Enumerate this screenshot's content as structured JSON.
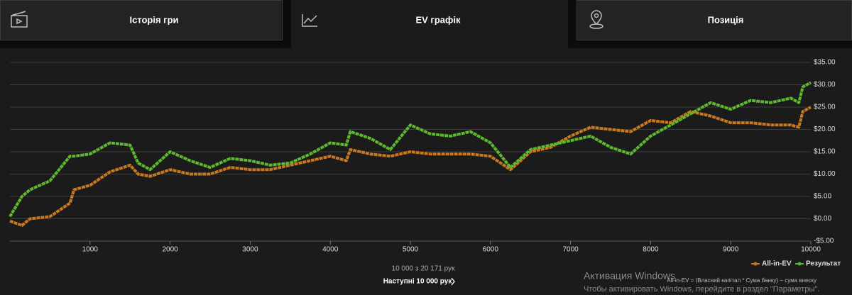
{
  "tabs": [
    {
      "label": "Історія гри"
    },
    {
      "label": "EV графік"
    },
    {
      "label": "Позиція"
    }
  ],
  "pagination": {
    "summary": "10 000 з 20 171 рук",
    "next": "Наступні 10 000 рук"
  },
  "footnote": "All-in-EV = (Власний капітал * Сума банку) − сума внеску",
  "watermark": {
    "title": "Активация Windows",
    "text": "Чтобы активировать Windows, перейдите в раздел \"Параметры\"."
  },
  "chart_data": {
    "type": "line",
    "x": [
      0,
      150,
      250,
      500,
      750,
      800,
      1000,
      1250,
      1500,
      1600,
      1750,
      2000,
      2250,
      2500,
      2750,
      3000,
      3250,
      3500,
      3750,
      4000,
      4200,
      4250,
      4500,
      4750,
      5000,
      5250,
      5500,
      5750,
      6000,
      6250,
      6500,
      6750,
      7000,
      7250,
      7500,
      7750,
      8000,
      8250,
      8500,
      8750,
      9000,
      9250,
      9500,
      9750,
      9850,
      9900,
      10000
    ],
    "series": [
      {
        "name": "All-in-EV",
        "color": "#c8781e",
        "values": [
          -0.5,
          -1.5,
          0,
          0.5,
          3.5,
          6.5,
          7.5,
          10.5,
          12,
          10,
          9.5,
          11,
          10,
          10,
          11.5,
          11,
          11,
          12,
          13,
          14,
          13,
          15.5,
          14.5,
          14,
          15,
          14.5,
          14.5,
          14.5,
          14,
          11,
          15,
          16,
          18.5,
          20.5,
          20,
          19.5,
          22,
          21.5,
          24,
          23,
          21.5,
          21.5,
          21,
          21,
          20.5,
          24,
          25
        ]
      },
      {
        "name": "Результат",
        "color": "#5cb82e",
        "values": [
          0.5,
          5,
          6.5,
          8.5,
          14,
          14,
          14.5,
          17,
          16.5,
          12.5,
          11,
          15,
          13,
          11.5,
          13.5,
          13,
          12,
          12.5,
          14.5,
          17,
          16.5,
          19.5,
          18,
          15.5,
          21,
          19,
          18.5,
          19.5,
          17,
          11.5,
          15.5,
          16.5,
          17.5,
          18.5,
          16,
          14.5,
          18.5,
          21,
          23.5,
          26,
          24.5,
          26.5,
          26,
          27,
          26,
          29.5,
          30.5
        ]
      }
    ],
    "xlim": [
      0,
      10000
    ],
    "xticks": [
      1000,
      2000,
      3000,
      4000,
      5000,
      6000,
      7000,
      8000,
      9000,
      10000
    ],
    "ylim": [
      -5,
      35
    ],
    "yticks": [
      {
        "value": -5,
        "label": "-$5.00"
      },
      {
        "value": 0,
        "label": "$0.00"
      },
      {
        "value": 5,
        "label": "$5.00"
      },
      {
        "value": 10,
        "label": "$10.00"
      },
      {
        "value": 15,
        "label": "$15.00"
      },
      {
        "value": 20,
        "label": "$20.00"
      },
      {
        "value": 25,
        "label": "$25.00"
      },
      {
        "value": 30,
        "label": "$30.00"
      },
      {
        "value": 35,
        "label": "$35.00"
      }
    ],
    "grid": true,
    "legend": "bottom-right"
  }
}
